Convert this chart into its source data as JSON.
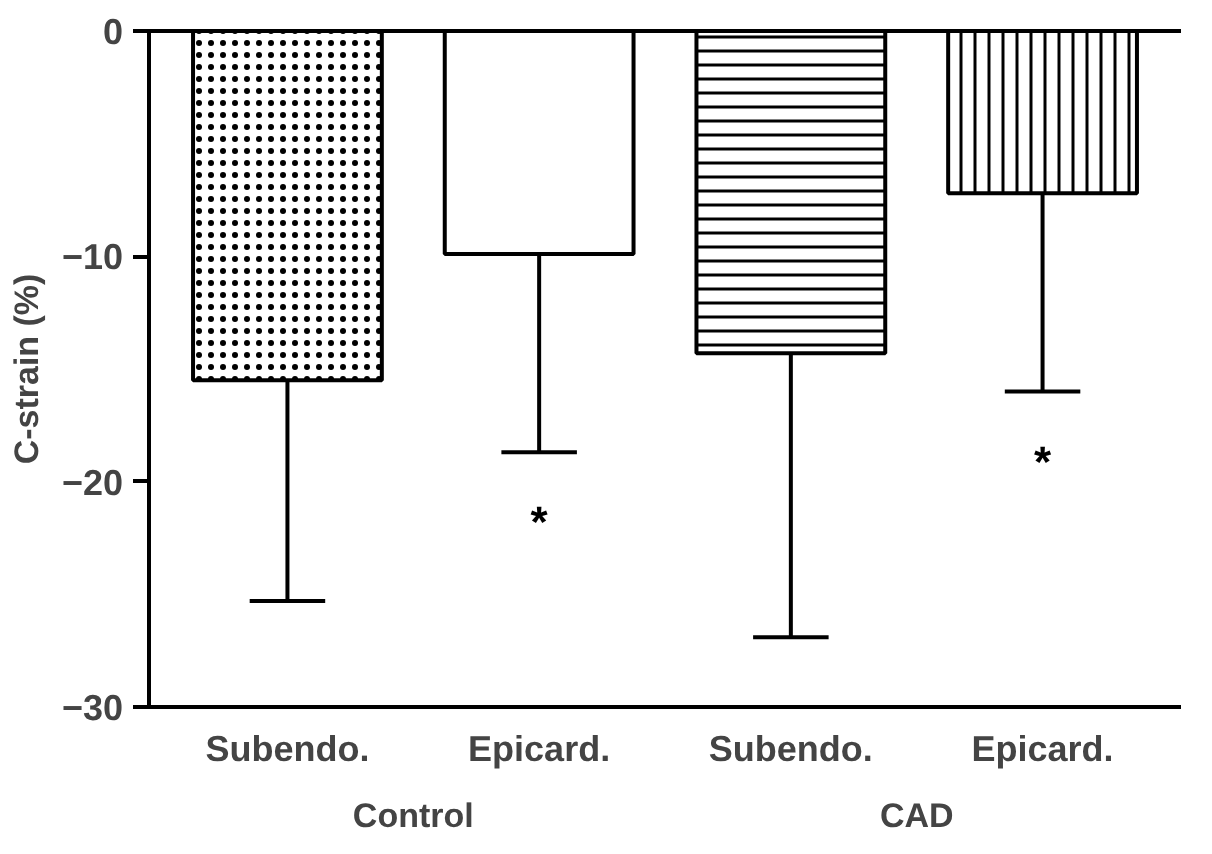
{
  "chart_data": {
    "type": "bar",
    "ylabel": "C-strain (%)",
    "categories": [
      "Subendo.",
      "Epicard.",
      "Subendo.",
      "Epicard."
    ],
    "values": [
      -15.5,
      -9.9,
      -14.3,
      -7.2
    ],
    "colors": [
      "#000000",
      "#000000",
      "#000000",
      "#000000"
    ],
    "errors": [
      [
        -25.3,
        -15.5
      ],
      [
        -18.7,
        -9.9
      ],
      [
        -26.9,
        -14.3
      ],
      [
        -16.0,
        -7.2
      ]
    ],
    "ylim": [
      -30,
      0
    ],
    "yticks": [
      -30,
      -20,
      -10,
      0
    ],
    "grid": false,
    "annotations": [
      "*",
      "*",
      "Control",
      "CAD"
    ]
  }
}
